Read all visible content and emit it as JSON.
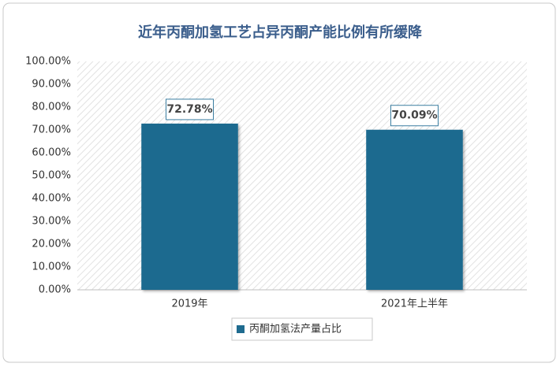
{
  "chart_data": {
    "type": "bar",
    "title": "近年丙酮加氢工艺占异丙酮产能比例有所缓降",
    "categories": [
      "2019年",
      "2021年上半年"
    ],
    "series": [
      {
        "name": "丙酮加氢法产量占比",
        "color": "#1f6b8f",
        "values": [
          72.78,
          70.09
        ],
        "value_labels": [
          "72.78%",
          "70.09%"
        ]
      }
    ],
    "ylim": [
      0,
      100
    ],
    "yticks": [
      {
        "value": 0,
        "label": "0.00%"
      },
      {
        "value": 10,
        "label": "10.00%"
      },
      {
        "value": 20,
        "label": "20.00%"
      },
      {
        "value": 30,
        "label": "30.00%"
      },
      {
        "value": 40,
        "label": "40.00%"
      },
      {
        "value": 50,
        "label": "50.00%"
      },
      {
        "value": 60,
        "label": "60.00%"
      },
      {
        "value": 70,
        "label": "70.00%"
      },
      {
        "value": 80,
        "label": "80.00%"
      },
      {
        "value": 90,
        "label": "90.00%"
      },
      {
        "value": 100,
        "label": "100.00%"
      }
    ],
    "legend": "bottom"
  }
}
